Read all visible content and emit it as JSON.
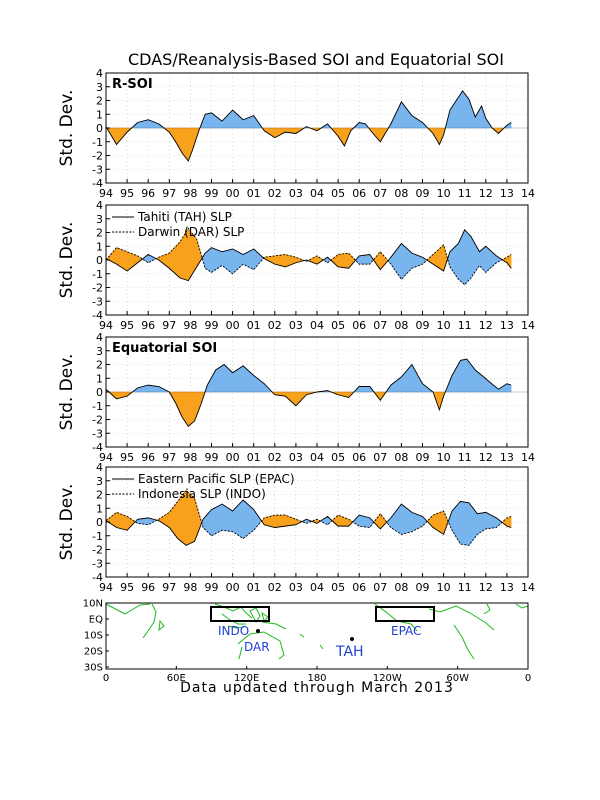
{
  "title": "CDAS/Reanalysis-Based SOI and Equatorial SOI",
  "footer": "Data updated through March 2013",
  "colors": {
    "positive": "#78b4ee",
    "negative": "#f7a11c",
    "grid": "#b8b8b8",
    "land": "#1eba1e",
    "label": "#1f3fd8"
  },
  "chart_data": [
    {
      "type": "area",
      "panel_label": "R-SOI",
      "ylabel": "Std. Dev.",
      "ylim": [
        -4,
        4
      ],
      "yticks": [
        "4",
        "3",
        "2",
        "1",
        "0",
        "-1",
        "-2",
        "-3",
        "-4"
      ],
      "xlim": [
        1994,
        2014
      ],
      "xticks": [
        "94",
        "95",
        "96",
        "97",
        "98",
        "99",
        "00",
        "01",
        "02",
        "03",
        "04",
        "05",
        "06",
        "07",
        "08",
        "09",
        "10",
        "11",
        "12",
        "13",
        "14"
      ],
      "grid": true,
      "x": [
        1994,
        1994.5,
        1995,
        1995.5,
        1996,
        1996.5,
        1997,
        1997.3,
        1997.6,
        1997.9,
        1998.1,
        1998.4,
        1998.7,
        1999,
        1999.5,
        2000,
        2000.5,
        2001,
        2001.5,
        2002,
        2002.5,
        2003,
        2003.5,
        2004,
        2004.5,
        2005,
        2005.3,
        2005.6,
        2006,
        2006.3,
        2006.6,
        2007,
        2007.5,
        2008,
        2008.5,
        2009,
        2009.5,
        2009.8,
        2010,
        2010.3,
        2010.6,
        2010.9,
        2011.2,
        2011.5,
        2011.8,
        2012,
        2012.3,
        2012.6,
        2013,
        2013.2
      ],
      "series": [
        {
          "values": [
            0.1,
            -1.2,
            -0.3,
            0.4,
            0.6,
            0.3,
            -0.3,
            -1.0,
            -1.8,
            -2.4,
            -1.6,
            -0.2,
            1.0,
            1.1,
            0.5,
            1.3,
            0.6,
            0.9,
            -0.2,
            -0.7,
            -0.3,
            -0.4,
            0.1,
            -0.2,
            0.3,
            -0.6,
            -1.3,
            -0.2,
            0.4,
            0.3,
            -0.3,
            -1.0,
            0.3,
            1.9,
            0.9,
            0.4,
            -0.4,
            -1.2,
            -0.5,
            1.3,
            2.0,
            2.7,
            2.1,
            0.8,
            1.6,
            0.7,
            0.0,
            -0.4,
            0.2,
            0.4
          ]
        }
      ]
    },
    {
      "type": "area",
      "ylabel": "Std. Dev.",
      "ylim": [
        -4,
        4
      ],
      "yticks": [
        "4",
        "3",
        "2",
        "1",
        "0",
        "-1",
        "-2",
        "-3",
        "-4"
      ],
      "xlim": [
        1994,
        2014
      ],
      "xticks": [
        "94",
        "95",
        "96",
        "97",
        "98",
        "99",
        "00",
        "01",
        "02",
        "03",
        "04",
        "05",
        "06",
        "07",
        "08",
        "09",
        "10",
        "11",
        "12",
        "13",
        "14"
      ],
      "grid": true,
      "legend": [
        "Tahiti (TAH) SLP",
        "Darwin (DAR) SLP"
      ],
      "x": [
        1994,
        1994.5,
        1995,
        1995.5,
        1996,
        1996.5,
        1997,
        1997.5,
        1997.9,
        1998.3,
        1998.7,
        1999,
        1999.5,
        2000,
        2000.5,
        2001,
        2001.5,
        2002,
        2002.5,
        2003,
        2003.5,
        2004,
        2004.5,
        2005,
        2005.5,
        2006,
        2006.5,
        2007,
        2007.5,
        2008,
        2008.5,
        2009,
        2009.5,
        2010,
        2010.3,
        2010.7,
        2011,
        2011.3,
        2011.7,
        2012,
        2012.5,
        2013,
        2013.2
      ],
      "series": [
        {
          "name": "Tahiti (TAH) SLP",
          "values": [
            0.1,
            -0.3,
            -0.8,
            -0.2,
            0.4,
            0.0,
            -0.6,
            -1.3,
            -1.5,
            -0.5,
            0.5,
            0.9,
            0.6,
            0.8,
            0.4,
            0.8,
            0.1,
            -0.3,
            -0.5,
            -0.2,
            0.0,
            -0.3,
            0.2,
            -0.5,
            -0.6,
            0.3,
            0.4,
            -0.7,
            0.2,
            1.2,
            0.5,
            0.2,
            -0.3,
            -0.8,
            0.6,
            1.2,
            2.2,
            1.7,
            0.6,
            1.0,
            0.3,
            -0.2,
            -0.6
          ]
        },
        {
          "name": "Darwin (DAR) SLP",
          "values": [
            0.0,
            0.9,
            0.6,
            0.3,
            -0.2,
            0.2,
            0.5,
            1.3,
            2.3,
            1.5,
            -0.6,
            -0.9,
            -0.4,
            -1.0,
            -0.3,
            -0.7,
            0.2,
            0.3,
            0.4,
            0.2,
            -0.1,
            0.3,
            -0.2,
            0.4,
            0.5,
            -0.3,
            -0.3,
            0.6,
            -0.3,
            -1.4,
            -0.6,
            -0.3,
            0.4,
            1.1,
            -0.5,
            -1.4,
            -1.8,
            -1.3,
            -0.4,
            -0.9,
            -0.2,
            0.2,
            0.4
          ]
        }
      ]
    },
    {
      "type": "area",
      "panel_label": "Equatorial SOI",
      "ylabel": "Std. Dev.",
      "ylim": [
        -4,
        4
      ],
      "yticks": [
        "4",
        "3",
        "2",
        "1",
        "0",
        "-1",
        "-2",
        "-3",
        "-4"
      ],
      "xlim": [
        1994,
        2014
      ],
      "xticks": [
        "94",
        "95",
        "96",
        "97",
        "98",
        "99",
        "00",
        "01",
        "02",
        "03",
        "04",
        "05",
        "06",
        "07",
        "08",
        "09",
        "10",
        "11",
        "12",
        "13",
        "14"
      ],
      "grid": true,
      "x": [
        1994,
        1994.5,
        1995,
        1995.5,
        1996,
        1996.5,
        1997,
        1997.3,
        1997.6,
        1997.9,
        1998.2,
        1998.5,
        1998.8,
        1999.2,
        1999.6,
        2000,
        2000.5,
        2001,
        2001.5,
        2002,
        2002.5,
        2003,
        2003.5,
        2004,
        2004.5,
        2005,
        2005.5,
        2006,
        2006.5,
        2007,
        2007.5,
        2008,
        2008.5,
        2009,
        2009.5,
        2009.8,
        2010,
        2010.4,
        2010.8,
        2011.1,
        2011.5,
        2011.9,
        2012.2,
        2012.6,
        2013,
        2013.2
      ],
      "series": [
        {
          "values": [
            0.2,
            -0.5,
            -0.3,
            0.3,
            0.5,
            0.4,
            0.0,
            -0.8,
            -1.8,
            -2.5,
            -2.1,
            -0.9,
            0.5,
            1.6,
            2.0,
            1.4,
            1.9,
            1.2,
            0.6,
            -0.2,
            -0.3,
            -1.0,
            -0.2,
            0.0,
            0.1,
            -0.2,
            -0.4,
            0.4,
            0.4,
            -0.6,
            0.5,
            1.1,
            2.0,
            0.6,
            0.0,
            -1.3,
            -0.3,
            1.2,
            2.3,
            2.4,
            1.6,
            1.1,
            0.7,
            0.2,
            0.6,
            0.5
          ]
        }
      ]
    },
    {
      "type": "area",
      "ylabel": "Std. Dev.",
      "ylim": [
        -4,
        4
      ],
      "yticks": [
        "4",
        "3",
        "2",
        "1",
        "0",
        "-1",
        "-2",
        "-3",
        "-4"
      ],
      "xlim": [
        1994,
        2014
      ],
      "xticks": [
        "94",
        "95",
        "96",
        "97",
        "98",
        "99",
        "00",
        "01",
        "02",
        "03",
        "04",
        "05",
        "06",
        "07",
        "08",
        "09",
        "10",
        "11",
        "12",
        "13",
        "14"
      ],
      "grid": true,
      "legend": [
        "Eastern Pacific SLP (EPAC)",
        "Indonesia SLP (INDO)"
      ],
      "x": [
        1994,
        1994.5,
        1995,
        1995.5,
        1996,
        1996.5,
        1997,
        1997.4,
        1997.8,
        1998.2,
        1998.6,
        1999,
        1999.5,
        2000,
        2000.5,
        2001,
        2001.5,
        2002,
        2002.5,
        2003,
        2003.5,
        2004,
        2004.5,
        2005,
        2005.5,
        2006,
        2006.5,
        2007,
        2007.5,
        2008,
        2008.5,
        2009,
        2009.5,
        2010,
        2010.4,
        2010.8,
        2011.2,
        2011.6,
        2012,
        2012.5,
        2013,
        2013.2
      ],
      "series": [
        {
          "name": "Eastern Pacific SLP (EPAC)",
          "values": [
            0.1,
            -0.4,
            -0.6,
            0.2,
            0.3,
            0.1,
            -0.4,
            -1.2,
            -1.7,
            -1.4,
            0.2,
            0.9,
            1.3,
            0.8,
            1.6,
            0.9,
            -0.2,
            -0.4,
            -0.3,
            -0.2,
            0.2,
            -0.1,
            0.4,
            -0.3,
            -0.3,
            0.5,
            0.3,
            -0.5,
            0.3,
            1.3,
            0.7,
            0.4,
            -0.4,
            -0.9,
            0.8,
            1.5,
            1.4,
            0.6,
            0.7,
            0.3,
            -0.3,
            -0.4
          ]
        },
        {
          "name": "Indonesia SLP (INDO)",
          "values": [
            0.1,
            0.7,
            0.4,
            -0.1,
            -0.2,
            0.2,
            0.7,
            1.5,
            2.3,
            1.7,
            -0.4,
            -1.0,
            -0.6,
            -0.7,
            -1.2,
            -0.6,
            0.3,
            0.5,
            0.5,
            0.2,
            -0.1,
            0.2,
            -0.2,
            0.5,
            0.2,
            -0.3,
            -0.4,
            0.6,
            -0.4,
            -0.9,
            -0.7,
            -0.3,
            0.5,
            0.8,
            -0.6,
            -1.6,
            -1.7,
            -0.9,
            -0.5,
            -0.4,
            0.3,
            0.4
          ]
        }
      ]
    }
  ],
  "map": {
    "lat_ticks": [
      "10N",
      "EQ",
      "10S",
      "20S",
      "30S"
    ],
    "lon_ticks": [
      "0",
      "60E",
      "120E",
      "180",
      "120W",
      "60W",
      "0"
    ],
    "regions": {
      "indo": "INDO",
      "epac": "EPAC",
      "dar": "DAR",
      "tah": "TAH"
    }
  }
}
